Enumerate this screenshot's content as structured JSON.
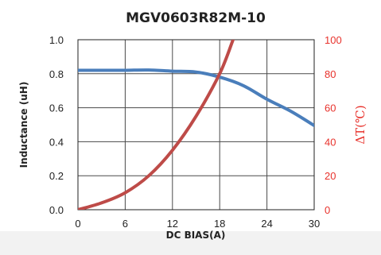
{
  "chart_data": {
    "type": "line",
    "title": "MGV0603R82M-10",
    "xlabel": "DC BIAS(A)",
    "ylabel": "Inductance  (uH)",
    "y2label": "ΔT(℃)",
    "xlim": [
      0,
      30
    ],
    "ylim": [
      0,
      1.0
    ],
    "y2lim": [
      0,
      100
    ],
    "x_ticks": [
      "0",
      "6",
      "12",
      "18",
      "24",
      "30"
    ],
    "y_ticks": [
      "0.0",
      "0.2",
      "0.4",
      "0.6",
      "0.8",
      "1.0"
    ],
    "y2_ticks": [
      "0",
      "20",
      "40",
      "60",
      "80",
      "100"
    ],
    "grid": true,
    "colors": {
      "inductance": "#4a7ebb",
      "temperature": "#be4b48",
      "right_axis": "#e8322c"
    },
    "series": [
      {
        "axis": "left",
        "x": [
          0,
          3,
          6,
          9,
          12,
          15,
          18,
          21,
          24,
          27,
          30
        ],
        "values": [
          0.82,
          0.82,
          0.82,
          0.822,
          0.815,
          0.81,
          0.78,
          0.73,
          0.65,
          0.58,
          0.495
        ]
      },
      {
        "axis": "right",
        "x": [
          0,
          3,
          6,
          9,
          12,
          15,
          18,
          19.7
        ],
        "values": [
          0,
          4,
          10,
          20,
          35,
          55,
          80,
          100
        ]
      }
    ]
  }
}
